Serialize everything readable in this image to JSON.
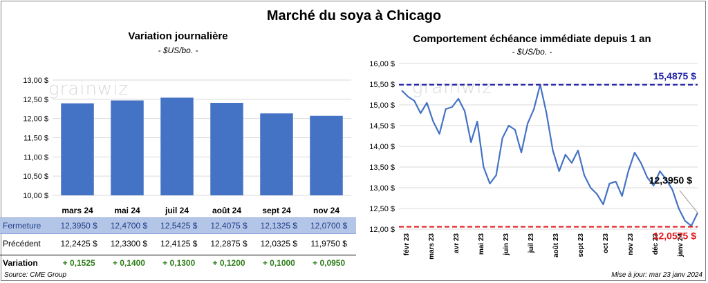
{
  "main_title": "Marché du soya à Chicago",
  "source": "Source: CME Group",
  "update": "Mise à jour: mar 23 janv 2024",
  "watermark": "grainwiz",
  "table": {
    "row_labels": [
      "Fermeture",
      "Précédent",
      "Variation"
    ],
    "fermeture": [
      "12,3950  $",
      "12,4700  $",
      "12,5425  $",
      "12,4075  $",
      "12,1325  $",
      "12,0700  $"
    ],
    "precedent": [
      "12,2425  $",
      "12,3300  $",
      "12,4125  $",
      "12,2875  $",
      "12,0325  $",
      "11,9750  $"
    ],
    "variation": [
      "+ 0,1525",
      "+ 0,1400",
      "+ 0,1300",
      "+ 0,1200",
      "+ 0,1000",
      "+ 0,0950"
    ]
  },
  "chart_data": [
    {
      "type": "bar",
      "title": "Variation  journalière",
      "subtitle": "- $US/bo. -",
      "categories": [
        "mars 24",
        "mai 24",
        "juil 24",
        "août 24",
        "sept 24",
        "nov 24"
      ],
      "values": [
        12.395,
        12.47,
        12.5425,
        12.4075,
        12.1325,
        12.07
      ],
      "ylim": [
        10.0,
        13.0
      ],
      "yticks": [
        "10,00 $",
        "10,50 $",
        "11,00 $",
        "11,50 $",
        "12,00 $",
        "12,50 $",
        "13,00 $"
      ],
      "color": "#4472c4",
      "grid": true
    },
    {
      "type": "line",
      "title": "Comportement  échéance immédiate depuis 1 an",
      "subtitle": "- $US/bo. -",
      "ylim": [
        12.0,
        16.0
      ],
      "yticks": [
        "12,00 $",
        "12,50 $",
        "13,00 $",
        "13,50 $",
        "14,00 $",
        "14,50 $",
        "15,00 $",
        "15,50 $",
        "16,00 $"
      ],
      "xticks": [
        "févr 23",
        "mars 23",
        "avr 23",
        "mai 23",
        "juin 23",
        "juil 23",
        "août 23",
        "sept 23",
        "oct 23",
        "nov 23",
        "déc 23",
        "janv 24"
      ],
      "x": [
        "févr 23",
        "févr 23",
        "févr 23",
        "févr 23",
        "mars 23",
        "mars 23",
        "mars 23",
        "mars 23",
        "avr 23",
        "avr 23",
        "avr 23",
        "avr 23",
        "mai 23",
        "mai 23",
        "mai 23",
        "mai 23",
        "juin 23",
        "juin 23",
        "juin 23",
        "juin 23",
        "juil 23",
        "juil 23",
        "juil 23",
        "juil 23",
        "août 23",
        "août 23",
        "août 23",
        "août 23",
        "sept 23",
        "sept 23",
        "sept 23",
        "sept 23",
        "oct 23",
        "oct 23",
        "oct 23",
        "oct 23",
        "nov 23",
        "nov 23",
        "nov 23",
        "nov 23",
        "déc 23",
        "déc 23",
        "déc 23",
        "déc 23",
        "janv 24",
        "janv 24",
        "janv 24",
        "janv 24"
      ],
      "values": [
        15.35,
        15.2,
        15.1,
        14.8,
        15.05,
        14.6,
        14.3,
        14.9,
        14.95,
        15.15,
        14.85,
        14.1,
        14.6,
        13.5,
        13.1,
        13.3,
        14.2,
        14.5,
        14.4,
        13.85,
        14.55,
        14.9,
        15.49,
        14.8,
        13.9,
        13.4,
        13.8,
        13.6,
        13.9,
        13.3,
        13.0,
        12.85,
        12.6,
        13.1,
        13.15,
        12.8,
        13.4,
        13.85,
        13.6,
        13.25,
        13.05,
        13.4,
        13.2,
        12.95,
        12.5,
        12.2,
        12.08,
        12.395
      ],
      "max_line": {
        "value": 15.4875,
        "label": "15,4875  $",
        "color": "#2222a8"
      },
      "min_line": {
        "value": 12.0575,
        "label": "12,0575  $",
        "color": "#e31a1c"
      },
      "last_label": "12,3950 $",
      "color": "#4472c4"
    }
  ]
}
